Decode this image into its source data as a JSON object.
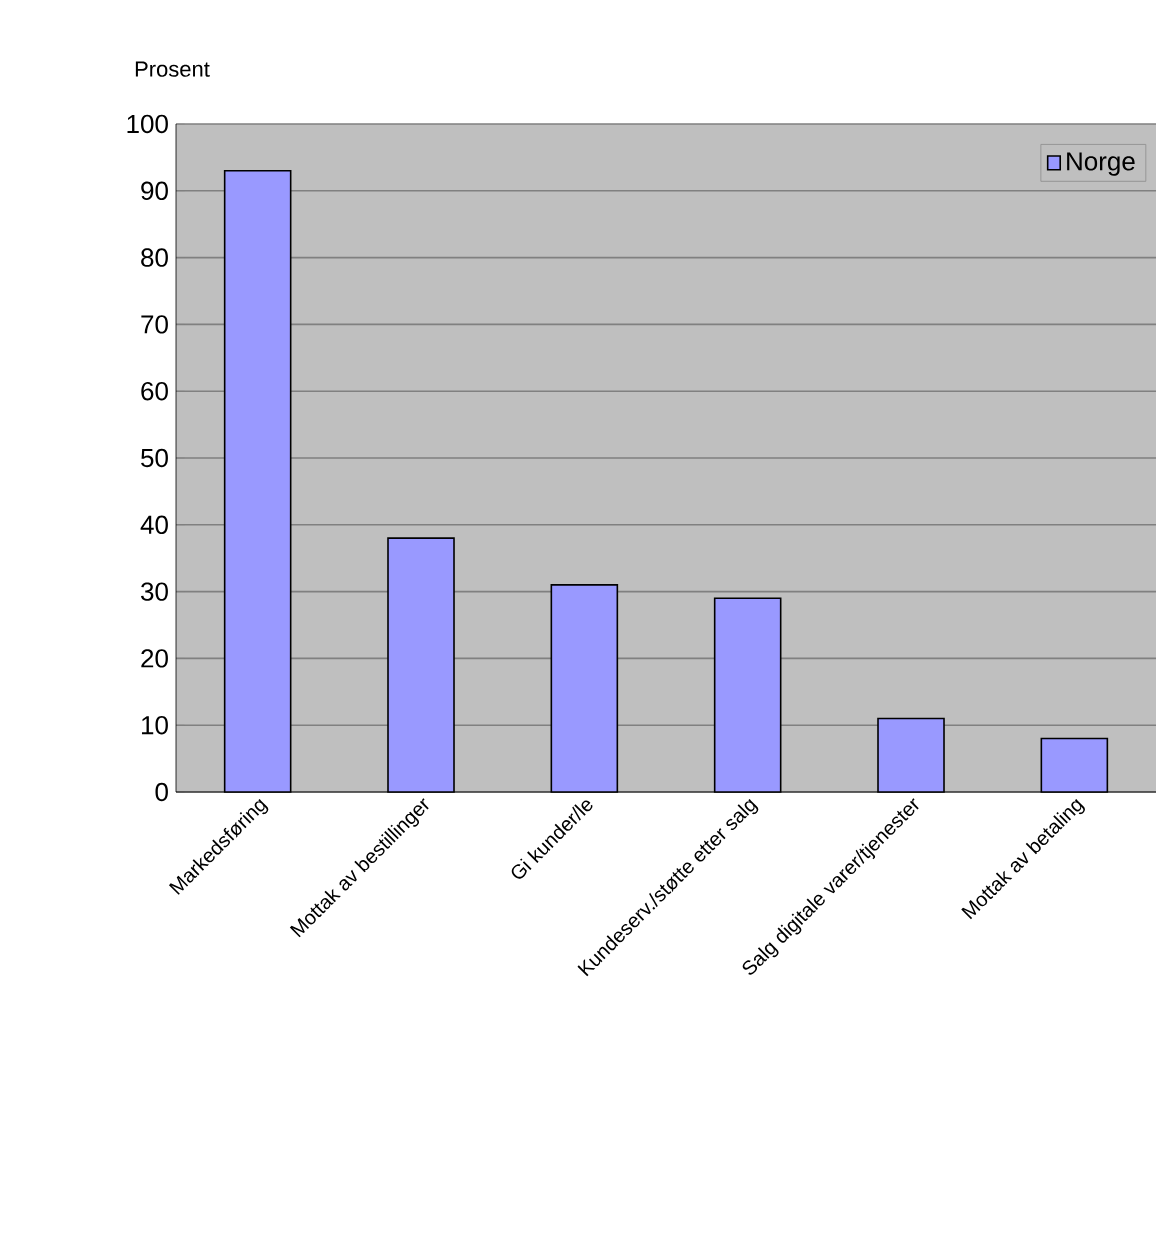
{
  "chart_data": {
    "type": "bar",
    "ylabel": "Prosent",
    "categories": [
      "Markedsføring",
      "Mottak av bestillinger",
      "Gi kunder/le",
      "Kundeserv./støtte etter salg",
      "Salg digitale varer/tjenester",
      "Mottak av betaling"
    ],
    "series": [
      {
        "name": "Norge",
        "color": "#9999ff",
        "values": [
          93,
          38,
          31,
          29,
          11,
          8
        ]
      }
    ],
    "ylim": [
      0,
      100
    ],
    "yticks": [
      0,
      10,
      20,
      30,
      40,
      50,
      60,
      70,
      80,
      90,
      100
    ],
    "grid": "y",
    "legend": "top right"
  }
}
